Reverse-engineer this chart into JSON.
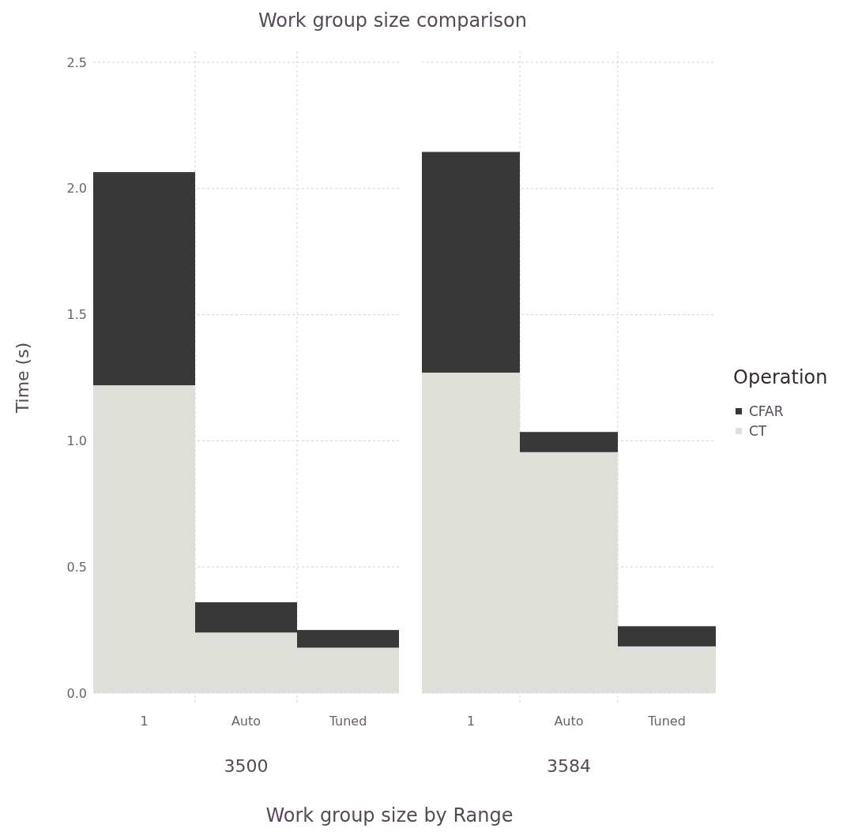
{
  "chart_data": [
    {
      "type": "bar",
      "title": "Work group size comparison",
      "ylabel": "Time (s)",
      "xlabel": "3500",
      "categories": [
        "1",
        "Auto",
        "Tuned"
      ],
      "stacked": true,
      "grid": true,
      "ylim": [
        0,
        2.5
      ],
      "yticks": [
        {
          "value": 0,
          "label": "0.0"
        },
        {
          "value": 0.5,
          "label": "0.5"
        },
        {
          "value": 1,
          "label": "1.0"
        },
        {
          "value": 1.5,
          "label": "1.5"
        },
        {
          "value": 2,
          "label": "2.0"
        },
        {
          "value": 2.5,
          "label": "2.5"
        }
      ],
      "series": [
        {
          "color": "#dfdfd9",
          "values": [
            1.22,
            0.24,
            0.18
          ]
        },
        {
          "color": "#383838",
          "values": [
            0.845,
            0.12,
            0.07
          ]
        }
      ]
    },
    {
      "type": "bar",
      "xlabel": "3584",
      "categories": [
        "1",
        "Auto",
        "Tuned"
      ],
      "stacked": true,
      "grid": true,
      "tick_labels": "x",
      "legend": "right",
      "legend_title": "Operation",
      "annotations": [
        "Work group size by Range"
      ],
      "ylim": [
        0,
        2.5
      ],
      "yticks": [
        {
          "value": 0,
          "label": null
        },
        {
          "value": 0.5,
          "label": null
        },
        {
          "value": 1,
          "label": null
        },
        {
          "value": 1.5,
          "label": null
        },
        {
          "value": 2,
          "label": null
        },
        {
          "value": 2.5,
          "label": null
        }
      ],
      "series": [
        {
          "name": "CT",
          "color": "#dfdfd9",
          "values": [
            1.27,
            0.955,
            0.185
          ]
        },
        {
          "name": "CFAR",
          "color": "#383838",
          "values": [
            0.875,
            0.08,
            0.08
          ]
        }
      ]
    }
  ]
}
